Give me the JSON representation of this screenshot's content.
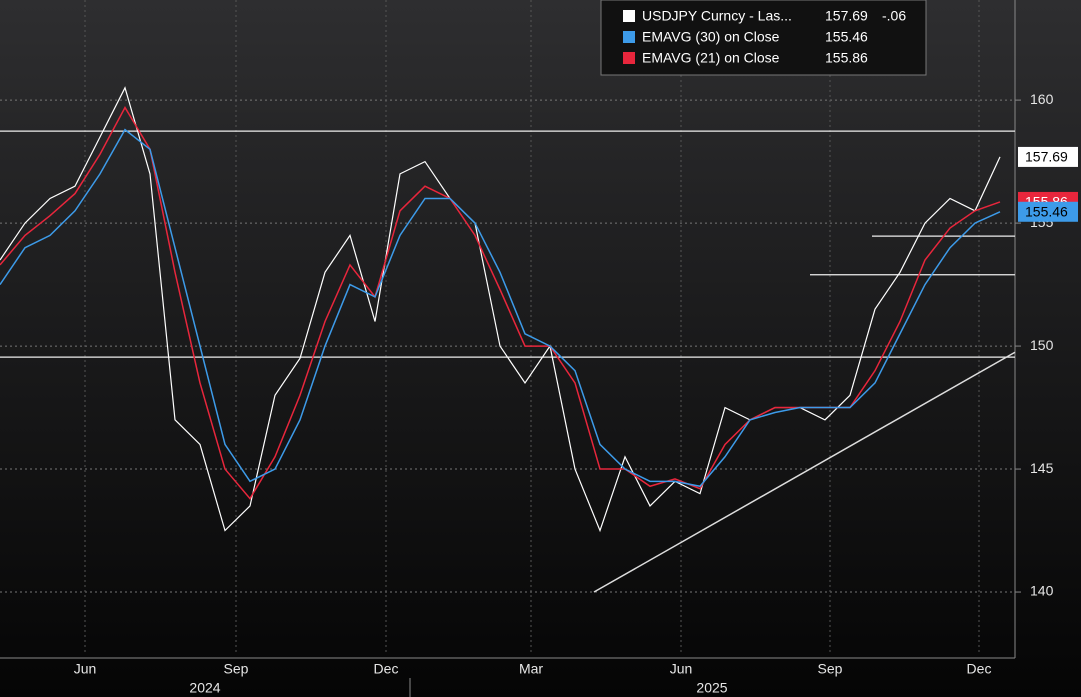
{
  "chart_data": {
    "type": "line",
    "categories": null,
    "xlim": [
      0,
      40.6
    ],
    "xticks": [
      {
        "value": 3.4,
        "label": "Jun"
      },
      {
        "value": 9.44,
        "label": "Sep"
      },
      {
        "value": 15.44,
        "label": "Dec"
      },
      {
        "value": 21.24,
        "label": "Mar"
      },
      {
        "value": 27.24,
        "label": "Jun"
      },
      {
        "value": 33.2,
        "label": "Sep"
      },
      {
        "value": 39.16,
        "label": "Dec"
      }
    ],
    "years": [
      "2024",
      "2025"
    ],
    "ylim": [
      137.44,
      164.07
    ],
    "yticks": [
      140,
      145,
      150,
      155,
      160
    ],
    "grid": true,
    "change_label": "-.06",
    "series": [
      {
        "name": "USDJPY Curncy - Las...",
        "color": "#ffffff",
        "label_on": "",
        "values": [
          153.5,
          155,
          156,
          156.5,
          158.5,
          160.5,
          157,
          147,
          146,
          142.5,
          143.5,
          148,
          149.5,
          153,
          154.5,
          151,
          157,
          157.5,
          156,
          155,
          150,
          148.5,
          150,
          145,
          142.5,
          145.5,
          143.5,
          144.5,
          144,
          147.5,
          147,
          147.5,
          147.5,
          147,
          148,
          151.5,
          153,
          155,
          156,
          155.5,
          157.69
        ]
      },
      {
        "name": "EMAVG (30)  on Close",
        "color": "#3d9be9",
        "values": [
          152.5,
          154,
          154.5,
          155.5,
          157,
          158.8,
          158,
          154,
          150,
          146,
          144.5,
          145,
          147,
          150,
          152.5,
          152,
          154.5,
          156,
          156,
          155,
          153,
          150.5,
          150,
          149,
          146,
          145,
          144.5,
          144.5,
          144.3,
          145.5,
          147,
          147.3,
          147.5,
          147.5,
          147.5,
          148.5,
          150.5,
          152.5,
          154,
          155,
          155.46
        ]
      },
      {
        "name": "EMAVG (21)  on Close",
        "color": "#e8263c",
        "values": [
          153.3,
          154.5,
          155.3,
          156.2,
          157.8,
          159.7,
          158,
          153,
          148.5,
          145,
          143.8,
          145.5,
          148,
          151,
          153.3,
          152,
          155.5,
          156.5,
          156,
          154.5,
          152.3,
          150,
          150,
          148.5,
          145,
          145,
          144.3,
          144.6,
          144.2,
          146,
          147,
          147.5,
          147.5,
          147.5,
          147.5,
          149,
          151,
          153.5,
          154.8,
          155.5,
          155.86
        ]
      }
    ],
    "hlines": [
      {
        "y": 158.74,
        "x0": 0
      },
      {
        "y": 149.55,
        "x0": 0
      },
      {
        "y": 154.47,
        "x0": 34.88
      },
      {
        "y": 152.9,
        "x0": 32.4
      }
    ],
    "trendline": {
      "x": [
        23.76,
        40.6
      ],
      "y": [
        140,
        149.75
      ]
    }
  }
}
